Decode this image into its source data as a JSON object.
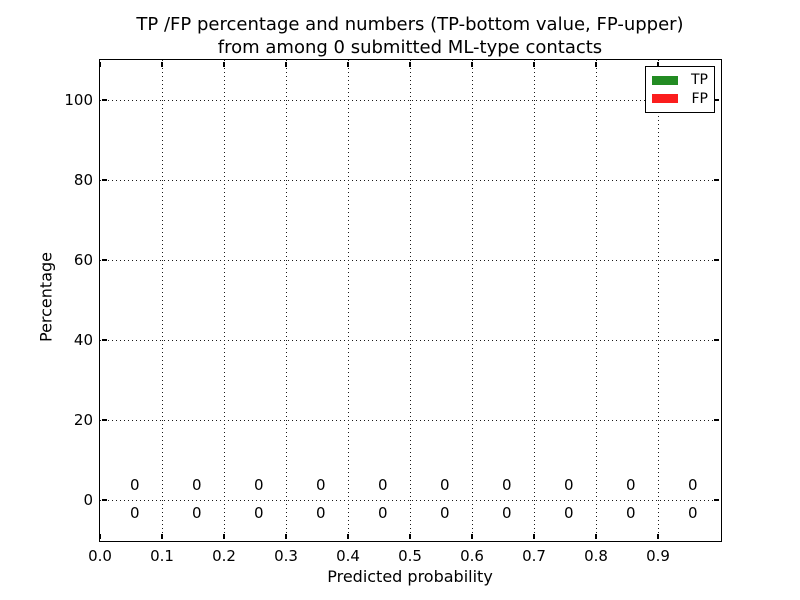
{
  "figure": {
    "title_line1": "TP /FP percentage and numbers (TP-bottom value, FP-upper)",
    "title_line2": "from among 0 submitted ML-type contacts"
  },
  "chart_data": {
    "type": "bar",
    "title": "TP /FP percentage and numbers (TP-bottom value, FP-upper)\nfrom among 0 submitted ML-type contacts",
    "xlabel": "Predicted probability",
    "ylabel": "Percentage",
    "xlim": [
      0.0,
      1.0
    ],
    "ylim": [
      -10,
      110
    ],
    "grid": "dotted",
    "legend_position": "upper-right",
    "xtick_values": [
      0.0,
      0.1,
      0.2,
      0.3,
      0.4,
      0.5,
      0.6,
      0.7,
      0.8,
      0.9
    ],
    "xtick_labels": [
      "0.0",
      "0.1",
      "0.2",
      "0.3",
      "0.4",
      "0.5",
      "0.6",
      "0.7",
      "0.8",
      "0.9"
    ],
    "ytick_values": [
      0,
      20,
      40,
      60,
      80,
      100
    ],
    "ytick_labels": [
      "0",
      "20",
      "40",
      "60",
      "80",
      "100"
    ],
    "categories": [
      0.05,
      0.15,
      0.25,
      0.35,
      0.45,
      0.55,
      0.65,
      0.75,
      0.85,
      0.95
    ],
    "series": [
      {
        "name": "TP",
        "color": "#228b22",
        "values": [
          0,
          0,
          0,
          0,
          0,
          0,
          0,
          0,
          0,
          0
        ]
      },
      {
        "name": "FP",
        "color": "#fb1d1d",
        "values": [
          0,
          0,
          0,
          0,
          0,
          0,
          0,
          0,
          0,
          0
        ]
      }
    ],
    "annotations": {
      "x_positions": [
        0.056,
        0.156,
        0.256,
        0.356,
        0.456,
        0.556,
        0.656,
        0.756,
        0.856,
        0.956
      ],
      "fp_y": 3.8,
      "tp_y": -3.3,
      "fp_labels": [
        "0",
        "0",
        "0",
        "0",
        "0",
        "0",
        "0",
        "0",
        "0",
        "0"
      ],
      "tp_labels": [
        "0",
        "0",
        "0",
        "0",
        "0",
        "0",
        "0",
        "0",
        "0",
        "0"
      ]
    }
  }
}
